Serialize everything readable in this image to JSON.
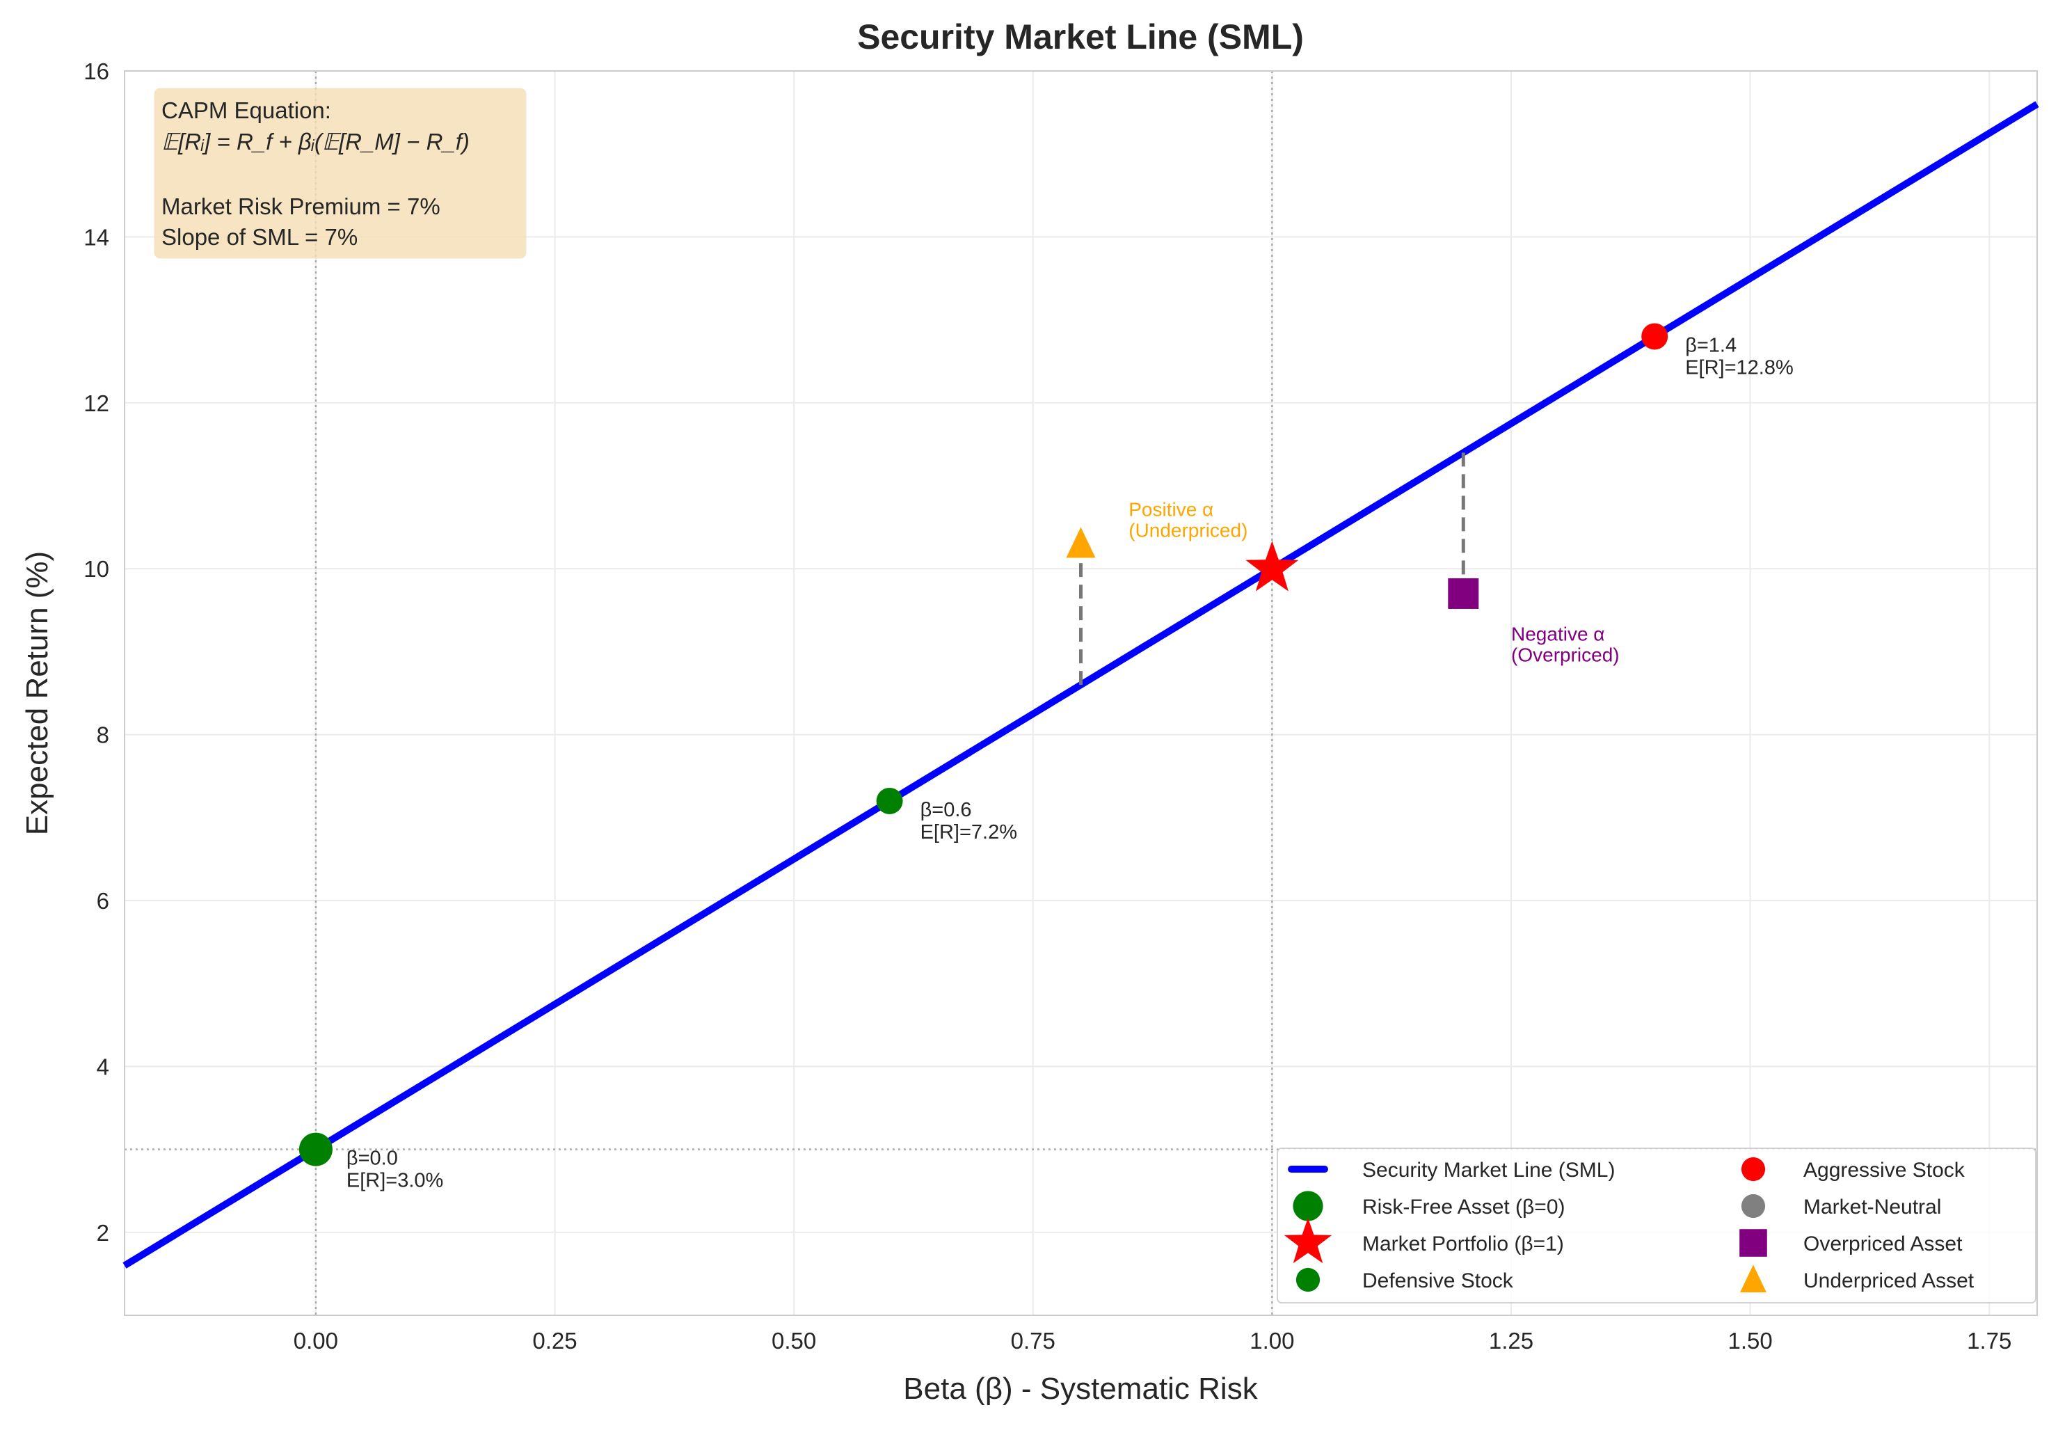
{
  "chart_data": {
    "type": "line",
    "title": "Security Market Line (SML)",
    "xlabel": "Beta (β) - Systematic Risk",
    "ylabel": "Expected Return (%)",
    "xlim": [
      -0.2,
      1.8
    ],
    "ylim": [
      1,
      16
    ],
    "grid": true,
    "xticks": [
      "-0.25",
      "0.00",
      "0.25",
      "0.50",
      "0.75",
      "1.00",
      "1.25",
      "1.50",
      "1.75"
    ],
    "xtick_values": [
      -0.25,
      0,
      0.25,
      0.5,
      0.75,
      1,
      1.25,
      1.5,
      1.75
    ],
    "yticks": [
      "2",
      "4",
      "6",
      "8",
      "10",
      "12",
      "14",
      "16"
    ],
    "ytick_values": [
      2,
      4,
      6,
      8,
      10,
      12,
      14,
      16
    ],
    "sml": {
      "name": "Security Market Line (SML)",
      "risk_free": 3,
      "market_risk_premium": 7,
      "x": [
        -0.2,
        1.8
      ],
      "y": [
        1.6,
        15.6
      ],
      "color": "#0000ff"
    },
    "reference_lines": {
      "vertical": [
        0,
        1
      ],
      "horizontal": [
        3
      ]
    },
    "points": [
      {
        "name": "Risk-Free Asset (β=0)",
        "x": 0,
        "y": 3.0,
        "marker": "circle-large",
        "color": "#008000",
        "label": [
          "β=0.0",
          "E[R]=3.0%"
        ]
      },
      {
        "name": "Market Portfolio (β=1)",
        "x": 1,
        "y": 10.0,
        "marker": "star",
        "color": "#ff0000"
      },
      {
        "name": "Defensive Stock",
        "x": 0.6,
        "y": 7.2,
        "marker": "circle",
        "color": "#008000",
        "label": [
          "β=0.6",
          "E[R]=7.2%"
        ]
      },
      {
        "name": "Aggressive Stock",
        "x": 1.4,
        "y": 12.8,
        "marker": "circle",
        "color": "#ff0000",
        "label": [
          "β=1.4",
          "E[R]=12.8%"
        ]
      },
      {
        "name": "Market-Neutral",
        "x": null,
        "y": null,
        "marker": "circle",
        "color": "#808080"
      },
      {
        "name": "Overpriced Asset",
        "x": 1.2,
        "y": 9.7,
        "marker": "square",
        "color": "#800080"
      },
      {
        "name": "Underpriced Asset",
        "x": 0.8,
        "y": 10.3,
        "marker": "triangle",
        "color": "#ffa500"
      }
    ],
    "alpha_lines": [
      {
        "x": 0.8,
        "from": 8.6,
        "to": 10.3
      },
      {
        "x": 1.2,
        "from": 11.4,
        "to": 9.7
      }
    ],
    "annotations": [
      {
        "lines": [
          "Positive α",
          "(Underpriced)"
        ],
        "color": "#ffa500",
        "x": 0.85,
        "y": 10.5
      },
      {
        "lines": [
          "Negative α",
          "(Overpriced)"
        ],
        "color": "#800080",
        "x": 1.25,
        "y": 9.0
      }
    ],
    "info_box": {
      "line1": "CAPM Equation:",
      "equation": "𝔼[Rᵢ] = R_f + βᵢ(𝔼[R_M] − R_f)",
      "line3": "Market Risk Premium = 7%",
      "line4": "Slope of SML = 7%",
      "background": "#f5deb3"
    },
    "legend": {
      "placement": "lower right",
      "columns": 2,
      "entries": [
        "Security Market Line (SML)",
        "Risk-Free Asset (β=0)",
        "Market Portfolio (β=1)",
        "Defensive Stock",
        "Aggressive Stock",
        "Market-Neutral",
        "Overpriced Asset",
        "Underpriced Asset"
      ]
    }
  }
}
